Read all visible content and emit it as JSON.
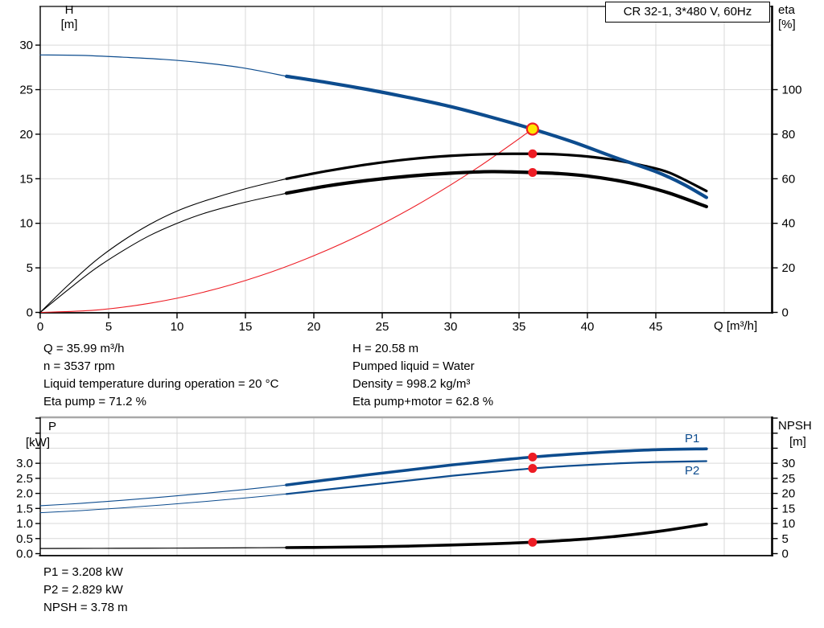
{
  "title_box": "CR 32-1, 3*480 V, 60Hz",
  "axis_labels": {
    "h": "H",
    "h_unit": "[m]",
    "eta": "eta",
    "eta_unit": "[%]",
    "q": "Q [m³/h]",
    "p": "P",
    "p_unit": "[kW]",
    "npsh": "NPSH",
    "npsh_unit": "[m]"
  },
  "info_top": {
    "left": [
      "Q = 35.99 m³/h",
      "n = 3537 rpm",
      "Liquid temperature during operation = 20 °C",
      "Eta pump = 71.2 %"
    ],
    "right": [
      "H = 20.58 m",
      "Pumped liquid = Water",
      "Density = 998.2 kg/m³",
      "Eta pump+motor = 62.8 %"
    ]
  },
  "info_bottom": [
    "P1 = 3.208 kW",
    "P2 = 2.829 kW",
    "NPSH = 3.78 m"
  ],
  "colors": {
    "blue": "#0d4c8e",
    "black": "#000000",
    "red": "#ed1c24",
    "yellow": "#ffe600",
    "grid": "#d9d9d9",
    "gray_border": "#a8a8a8",
    "axis": "#000000"
  },
  "chart_data": [
    {
      "type": "line",
      "title": "CR 32-1, 3*480 V, 60Hz",
      "x_axis": {
        "label": "Q [m³/h]",
        "tick_values": [
          0,
          5,
          10,
          15,
          20,
          25,
          30,
          35,
          40,
          45
        ],
        "grid_values": [
          5,
          10,
          15,
          20,
          25,
          30,
          35,
          40,
          45,
          50
        ],
        "range": [
          0,
          53.6
        ]
      },
      "y_left": {
        "label": "H [m]",
        "tick_values": [
          0,
          5,
          10,
          15,
          20,
          25,
          30
        ],
        "grid_values": [
          5,
          10,
          15,
          20,
          25,
          30
        ],
        "range": [
          0,
          34.3
        ]
      },
      "y_right": {
        "label": "eta [%]",
        "tick_values": [
          0,
          20,
          40,
          60,
          80,
          100
        ],
        "extra_tick_values": [],
        "range": [
          0,
          137
        ]
      },
      "series": [
        {
          "name": "system-curve",
          "axis": "left",
          "color": "red",
          "w_thin": 1.1,
          "w_thick": 0,
          "thin": [
            [
              0,
              0
            ],
            [
              4,
              0.25
            ],
            [
              8,
              1.02
            ],
            [
              12,
              2.29
            ],
            [
              16,
              4.07
            ],
            [
              20,
              6.36
            ],
            [
              24,
              9.15
            ],
            [
              28,
              12.46
            ],
            [
              32,
              16.27
            ],
            [
              35.99,
              20.58
            ]
          ],
          "thick": []
        },
        {
          "name": "eta-pump-curve",
          "axis": "right",
          "color": "black",
          "w_thin": 1.1,
          "w_thick": 3.2,
          "thin": [
            [
              0,
              0
            ],
            [
              2,
              12
            ],
            [
              4,
              23
            ],
            [
              6,
              32
            ],
            [
              8,
              39.5
            ],
            [
              10,
              45.5
            ],
            [
              12,
              50
            ],
            [
              15,
              55.5
            ],
            [
              18,
              60
            ]
          ],
          "thick": [
            [
              18,
              60
            ],
            [
              21,
              63.5
            ],
            [
              24,
              66.5
            ],
            [
              27,
              68.8
            ],
            [
              30,
              70.3
            ],
            [
              33,
              71.1
            ],
            [
              35.99,
              71.2
            ],
            [
              38,
              70.9
            ],
            [
              40,
              70
            ],
            [
              42,
              68.4
            ],
            [
              44,
              66
            ],
            [
              46,
              62.7
            ],
            [
              48.7,
              54.5
            ]
          ]
        },
        {
          "name": "eta-pump-motor-curve",
          "axis": "right",
          "color": "black",
          "w_thin": 1.1,
          "w_thick": 4.2,
          "thin": [
            [
              0,
              0
            ],
            [
              2,
              10
            ],
            [
              4,
              19.5
            ],
            [
              6,
              27.5
            ],
            [
              8,
              34.5
            ],
            [
              10,
              40
            ],
            [
              12,
              44.5
            ],
            [
              15,
              49.5
            ],
            [
              18,
              53.5
            ]
          ],
          "thick": [
            [
              18,
              53.5
            ],
            [
              21,
              56.8
            ],
            [
              24,
              59.3
            ],
            [
              27,
              61.2
            ],
            [
              30,
              62.5
            ],
            [
              33,
              63.2
            ],
            [
              35.99,
              62.8
            ],
            [
              38,
              62.3
            ],
            [
              40,
              61.2
            ],
            [
              42,
              59.4
            ],
            [
              44,
              56.9
            ],
            [
              46,
              53.5
            ],
            [
              48.7,
              47.5
            ]
          ]
        },
        {
          "name": "pump-head-curve",
          "axis": "left",
          "color": "blue",
          "w_thin": 1.2,
          "w_thick": 4.2,
          "thin": [
            [
              0,
              28.9
            ],
            [
              3,
              28.85
            ],
            [
              6,
              28.65
            ],
            [
              9,
              28.4
            ],
            [
              12,
              28.0
            ],
            [
              15,
              27.4
            ],
            [
              18,
              26.5
            ]
          ],
          "thick": [
            [
              18,
              26.5
            ],
            [
              21,
              25.8
            ],
            [
              24,
              25.0
            ],
            [
              27,
              24.1
            ],
            [
              30,
              23.1
            ],
            [
              33,
              21.9
            ],
            [
              35.99,
              20.58
            ],
            [
              39,
              19.1
            ],
            [
              42,
              17.4
            ],
            [
              45,
              15.8
            ],
            [
              47,
              14.4
            ],
            [
              48.7,
              12.9
            ]
          ]
        }
      ],
      "markers": [
        {
          "name": "duty-point",
          "q": 35.99,
          "value": 20.58,
          "axis": "left",
          "style": "duty"
        },
        {
          "name": "eta-pump-point",
          "q": 35.99,
          "value": 71.2,
          "axis": "right",
          "style": "red"
        },
        {
          "name": "eta-pump-motor-point",
          "q": 35.99,
          "value": 62.8,
          "axis": "right",
          "style": "red"
        }
      ]
    },
    {
      "type": "line",
      "title": "",
      "x_axis": {
        "label": "",
        "tick_values": [],
        "grid_values": [
          5,
          10,
          15,
          20,
          25,
          30,
          35,
          40,
          45,
          50
        ],
        "range": [
          0,
          53.6
        ]
      },
      "y_left": {
        "label": "P [kW]",
        "tick_values": [
          0,
          0.5,
          1,
          1.5,
          2,
          2.5,
          3
        ],
        "tick_labels": [
          "0.0",
          "0.5",
          "1.0",
          "1.5",
          "2.0",
          "2.5",
          "3.0"
        ],
        "extra_tick_values": [
          3.5,
          4,
          4.5
        ],
        "grid_values": [
          0.5,
          1,
          1.5,
          2,
          2.5,
          3,
          3.5,
          4
        ],
        "range": [
          0,
          4.55
        ]
      },
      "y_right": {
        "label": "NPSH [m]",
        "tick_values": [
          0,
          5,
          10,
          15,
          20,
          25,
          30
        ],
        "extra_tick_values": [
          35,
          40,
          45
        ],
        "range": [
          0,
          45.5
        ]
      },
      "series": [
        {
          "name": "npsh-curve",
          "axis": "right",
          "color": "black",
          "w_thin": 1.2,
          "w_thick": 3.6,
          "thin": [
            [
              0,
              1.7
            ],
            [
              4,
              1.75
            ],
            [
              8,
              1.8
            ],
            [
              12,
              1.87
            ],
            [
              15,
              1.93
            ],
            [
              18,
              2.0
            ]
          ],
          "thick": [
            [
              18,
              2.0
            ],
            [
              21,
              2.1
            ],
            [
              24,
              2.25
            ],
            [
              27,
              2.5
            ],
            [
              30,
              2.85
            ],
            [
              33,
              3.25
            ],
            [
              35.99,
              3.78
            ],
            [
              38,
              4.3
            ],
            [
              40,
              4.9
            ],
            [
              42,
              5.7
            ],
            [
              44,
              6.7
            ],
            [
              46,
              7.9
            ],
            [
              48.7,
              9.8
            ]
          ]
        },
        {
          "name": "p2-curve",
          "axis": "left",
          "color": "blue",
          "w_thin": 1.0,
          "w_thick": 2.2,
          "thin": [
            [
              0,
              1.36
            ],
            [
              3,
              1.43
            ],
            [
              6,
              1.52
            ],
            [
              9,
              1.62
            ],
            [
              12,
              1.73
            ],
            [
              15,
              1.85
            ],
            [
              18,
              1.98
            ]
          ],
          "thick": [
            [
              18,
              1.98
            ],
            [
              21,
              2.13
            ],
            [
              24,
              2.28
            ],
            [
              27,
              2.43
            ],
            [
              30,
              2.58
            ],
            [
              33,
              2.71
            ],
            [
              35.99,
              2.829
            ],
            [
              39,
              2.92
            ],
            [
              42,
              2.99
            ],
            [
              45,
              3.04
            ],
            [
              48.7,
              3.07
            ]
          ]
        },
        {
          "name": "p1-curve",
          "axis": "left",
          "color": "blue",
          "w_thin": 1.1,
          "w_thick": 3.6,
          "thin": [
            [
              0,
              1.59
            ],
            [
              3,
              1.67
            ],
            [
              6,
              1.77
            ],
            [
              9,
              1.88
            ],
            [
              12,
              2.0
            ],
            [
              15,
              2.13
            ],
            [
              18,
              2.28
            ]
          ],
          "thick": [
            [
              18,
              2.28
            ],
            [
              21,
              2.45
            ],
            [
              24,
              2.62
            ],
            [
              27,
              2.78
            ],
            [
              30,
              2.94
            ],
            [
              33,
              3.08
            ],
            [
              35.99,
              3.208
            ],
            [
              39,
              3.31
            ],
            [
              42,
              3.39
            ],
            [
              45,
              3.45
            ],
            [
              48.7,
              3.48
            ]
          ]
        }
      ],
      "markers": [
        {
          "name": "p1-point",
          "q": 35.99,
          "value": 3.208,
          "axis": "left",
          "style": "red"
        },
        {
          "name": "p2-point",
          "q": 35.99,
          "value": 2.829,
          "axis": "left",
          "style": "red"
        },
        {
          "name": "npsh-point",
          "q": 35.99,
          "value": 3.78,
          "axis": "right",
          "style": "red"
        }
      ],
      "curve_labels": [
        {
          "text": "P1",
          "series": "p1-curve"
        },
        {
          "text": "P2",
          "series": "p2-curve"
        }
      ]
    }
  ]
}
